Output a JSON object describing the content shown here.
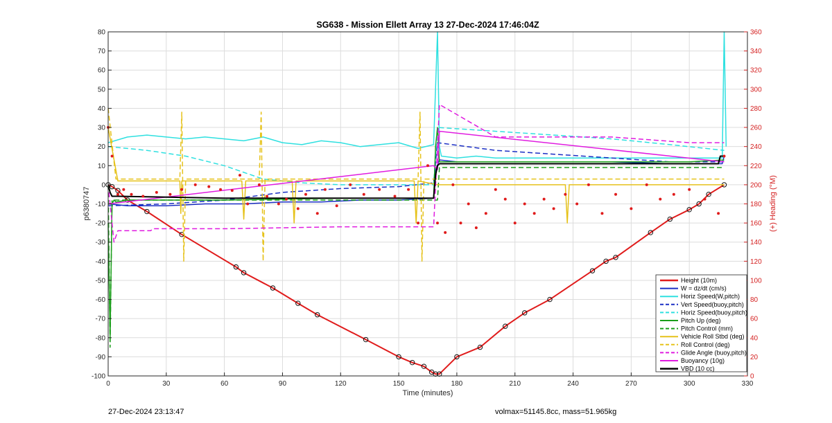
{
  "chart_data": {
    "type": "line",
    "title": "SG638 - Mission Ellett Array 13 27-Dec-2024 17:46:04Z",
    "xlabel": "Time (minutes)",
    "ylabel": "p6380747",
    "y2label": "(+) Heading (°M)",
    "xlim": [
      0,
      330
    ],
    "ylim": [
      -100,
      80
    ],
    "y2lim": [
      0,
      360
    ],
    "xticks": [
      0,
      30,
      60,
      90,
      120,
      150,
      180,
      210,
      240,
      270,
      300,
      330
    ],
    "yticks": [
      -100,
      -90,
      -80,
      -70,
      -60,
      -50,
      -40,
      -30,
      -20,
      -10,
      0,
      10,
      20,
      30,
      40,
      50,
      60,
      70,
      80
    ],
    "y2ticks": [
      0,
      20,
      40,
      60,
      80,
      100,
      120,
      140,
      160,
      180,
      200,
      220,
      240,
      260,
      280,
      300,
      320,
      340,
      360
    ],
    "y2color": "#d42020",
    "grid": true,
    "legend_position": "bottom-right",
    "series": [
      {
        "name": "Height (10m)",
        "color": "#e01b1b",
        "dash": "solid",
        "width": 2,
        "x": [
          0,
          2,
          5,
          10,
          20,
          38,
          66,
          70,
          85,
          98,
          108,
          133,
          150,
          157,
          163,
          167,
          169,
          171,
          180,
          192,
          205,
          215,
          228,
          250,
          257,
          262,
          280,
          290,
          300,
          305,
          310,
          318
        ],
        "y": [
          0,
          -1,
          -3,
          -8,
          -14,
          -26,
          -43,
          -46,
          -54,
          -62,
          -68,
          -81,
          -90,
          -93,
          -95,
          -98,
          -99,
          -99,
          -90,
          -85,
          -74,
          -67,
          -60,
          -45,
          -40,
          -38,
          -25,
          -18,
          -13,
          -10,
          -5,
          0
        ]
      },
      {
        "name": "W = dz/dt (cm/s)",
        "color": "#1a2ec4",
        "dash": "solid",
        "width": 1.5,
        "x": [
          0,
          10,
          30,
          50,
          70,
          90,
          110,
          130,
          150,
          168,
          169,
          171,
          180,
          200,
          230,
          260,
          290,
          317,
          318
        ],
        "y": [
          -10,
          -11,
          -11,
          -10,
          -10,
          -9,
          -9,
          -8,
          -8,
          -7,
          8,
          13,
          12,
          12,
          12,
          12,
          11,
          11,
          15
        ]
      },
      {
        "name": "Horiz Speed(W,pitch)",
        "color": "#2ee0e0",
        "dash": "solid",
        "width": 1.5,
        "x": [
          0,
          10,
          20,
          30,
          40,
          50,
          60,
          70,
          80,
          90,
          100,
          110,
          120,
          130,
          140,
          150,
          160,
          168,
          170,
          171,
          172,
          180,
          190,
          200,
          220,
          240,
          260,
          280,
          300,
          317,
          318,
          319
        ],
        "y": [
          22,
          25,
          26,
          25,
          24,
          25,
          24,
          23,
          25,
          22,
          21,
          23,
          22,
          20,
          21,
          22,
          19,
          21,
          80,
          20,
          15,
          14,
          15,
          14,
          14,
          14,
          14,
          14,
          14,
          14,
          80,
          20
        ]
      },
      {
        "name": "Vert Speed(buoy,pitch)",
        "color": "#1a2ec4",
        "dash": "dashed",
        "width": 1.5,
        "x": [
          0,
          30,
          60,
          90,
          120,
          150,
          168,
          170,
          200,
          230,
          260,
          290,
          318
        ],
        "y": [
          -11,
          -10,
          -8,
          -4,
          -2,
          -1,
          1,
          22,
          18,
          16,
          14,
          12,
          12
        ]
      },
      {
        "name": "Horiz Speed(buoy,pitch)",
        "color": "#2ee0e0",
        "dash": "dashed",
        "width": 1.5,
        "x": [
          0,
          20,
          40,
          60,
          80,
          100,
          120,
          150,
          168,
          170,
          200,
          230,
          260,
          290,
          318
        ],
        "y": [
          20,
          18,
          15,
          10,
          3,
          1,
          0,
          0,
          0,
          30,
          28,
          26,
          24,
          21,
          18
        ]
      },
      {
        "name": "Pitch Up (deg)",
        "color": "#1a9e1a",
        "dash": "solid",
        "width": 1.5,
        "x": [
          0,
          1,
          2,
          3,
          4,
          10,
          60,
          120,
          168,
          169,
          170,
          171,
          200,
          260,
          300,
          318
        ],
        "y": [
          -20,
          -80,
          -10,
          -8,
          -9,
          -8,
          -8,
          -7,
          -7,
          20,
          30,
          12,
          12,
          12,
          12,
          13
        ]
      },
      {
        "name": "Pitch Control (mm)",
        "color": "#1a9e1a",
        "dash": "dashed",
        "width": 1.5,
        "x": [
          0,
          1,
          2,
          170,
          171,
          318
        ],
        "y": [
          0,
          -85,
          -8,
          -8,
          9,
          9
        ]
      },
      {
        "name": "Vehicle Roll Stbd (deg)",
        "color": "#e6c21a",
        "dash": "solid",
        "width": 1.5,
        "x": [
          0,
          5,
          10,
          37,
          37.5,
          38,
          60,
          69,
          70,
          71,
          90,
          95,
          96,
          97,
          130,
          158,
          159,
          160,
          170,
          180,
          230,
          236,
          237,
          238,
          260,
          300,
          318
        ],
        "y": [
          30,
          2,
          2,
          2,
          -15,
          2,
          2,
          2,
          -18,
          2,
          2,
          2,
          -20,
          2,
          2,
          2,
          -20,
          2,
          0,
          0,
          0,
          0,
          -20,
          0,
          0,
          0,
          0
        ]
      },
      {
        "name": "Roll Control (deg)",
        "color": "#e6c21a",
        "dash": "dashed",
        "width": 1.5,
        "x": [
          0,
          4,
          37,
          38,
          39,
          40,
          78,
          79,
          80,
          81,
          160,
          161,
          162,
          163,
          318
        ],
        "y": [
          40,
          3,
          3,
          38,
          -40,
          3,
          3,
          38,
          -40,
          3,
          3,
          38,
          -40,
          3,
          3
        ]
      },
      {
        "name": "Glide Angle (buoy,pitch)",
        "color": "#e01be0",
        "dash": "dashed",
        "width": 1.5,
        "x": [
          0,
          3,
          5,
          22,
          23,
          60,
          120,
          168,
          170,
          171,
          200,
          260,
          300,
          318
        ],
        "y": [
          0,
          -30,
          -24,
          -24,
          -23,
          -23,
          -22,
          -22,
          20,
          42,
          25,
          25,
          22,
          22
        ]
      },
      {
        "name": "Buoyancy (10g)",
        "color": "#e01be0",
        "dash": "solid",
        "width": 1.5,
        "x": [
          0,
          168,
          170,
          171,
          318
        ],
        "y": [
          -10,
          10,
          8,
          28,
          12
        ]
      },
      {
        "name": "VBD (10 cc)",
        "color": "#000000",
        "dash": "solid",
        "width": 2,
        "x": [
          0,
          1,
          2,
          5,
          60,
          120,
          168,
          169,
          170,
          171,
          200,
          260,
          300,
          315,
          316,
          318
        ],
        "y": [
          0,
          -4,
          -6,
          -6,
          -7,
          -7,
          -7,
          5,
          10,
          11,
          11,
          11,
          11,
          11,
          15,
          15
        ]
      },
      {
        "name": "",
        "color": "#e01b1b",
        "dash": "points",
        "axis": "right",
        "x": [
          0,
          2,
          5,
          8,
          12,
          18,
          25,
          32,
          38,
          45,
          52,
          58,
          64,
          68,
          72,
          78,
          82,
          88,
          92,
          98,
          102,
          108,
          112,
          118,
          125,
          132,
          140,
          148,
          155,
          160,
          165,
          170,
          174,
          178,
          182,
          186,
          190,
          195,
          200,
          205,
          210,
          215,
          220,
          225,
          230,
          236,
          242,
          248,
          255,
          262,
          270,
          278,
          285,
          292,
          300,
          308,
          315,
          318
        ],
        "y": [
          260,
          230,
          190,
          195,
          190,
          188,
          192,
          190,
          195,
          200,
          198,
          195,
          194,
          210,
          180,
          200,
          188,
          180,
          185,
          175,
          190,
          170,
          195,
          178,
          200,
          190,
          195,
          188,
          195,
          160,
          220,
          160,
          150,
          200,
          160,
          180,
          155,
          170,
          195,
          185,
          160,
          180,
          170,
          185,
          175,
          190,
          180,
          200,
          170,
          190,
          175,
          200,
          185,
          190,
          195,
          185,
          170,
          230
        ]
      }
    ]
  },
  "footer": {
    "timestamp": "27-Dec-2024 23:13:47",
    "summary": "volmax=51145.8cc, mass=51.965kg"
  }
}
